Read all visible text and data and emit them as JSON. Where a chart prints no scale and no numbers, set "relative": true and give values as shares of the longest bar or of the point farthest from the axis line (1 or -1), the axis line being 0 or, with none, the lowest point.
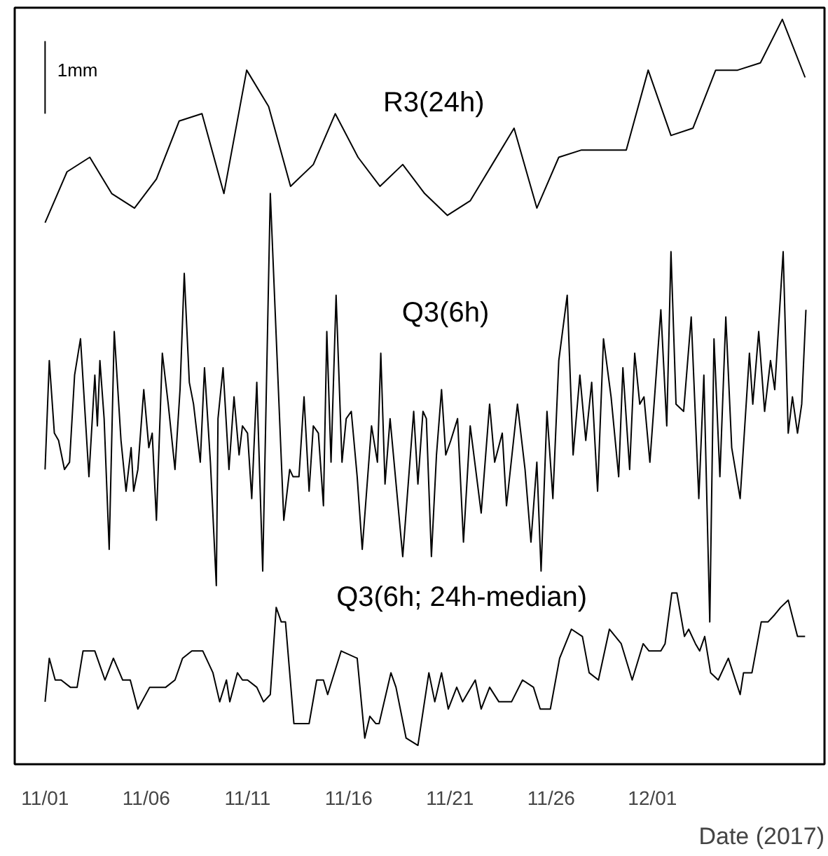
{
  "chart_data": {
    "type": "line",
    "relative": true,
    "xlabel": "Date (2017)",
    "xlim": [
      "2017-10-30T12:00",
      "2017-12-09T12:00"
    ],
    "xticks": [
      {
        "value": "2017-11-01",
        "label": "11/01"
      },
      {
        "value": "2017-11-06",
        "label": "11/06"
      },
      {
        "value": "2017-11-11",
        "label": "11/11"
      },
      {
        "value": "2017-11-16",
        "label": "11/16"
      },
      {
        "value": "2017-11-21",
        "label": "11/21"
      },
      {
        "value": "2017-11-26",
        "label": "11/26"
      },
      {
        "value": "2017-12-01",
        "label": "12/01"
      }
    ],
    "grid": false,
    "legend": false,
    "tick_labels": "x",
    "series": [
      {
        "name": "1mm",
        "color": "#000000",
        "x": [
          "2017-11-01T00:00",
          "2017-11-01T00:00"
        ],
        "values": [
          0.97,
          0.87
        ]
      },
      {
        "name": "R3(24h)",
        "color": "#000000",
        "x": [
          "2017-11-01T00:00",
          "2017-11-02T02:00",
          "2017-11-03T05:00",
          "2017-11-04T07:00",
          "2017-11-05T10:00",
          "2017-11-06T12:00",
          "2017-11-07T15:00",
          "2017-11-08T18:00",
          "2017-11-09T20:00",
          "2017-11-10T23:00",
          "2017-11-12T01:00",
          "2017-11-13T03:00",
          "2017-11-14T06:00",
          "2017-11-15T08:00",
          "2017-11-16T11:00",
          "2017-11-17T13:00",
          "2017-11-18T16:00",
          "2017-11-19T18:00",
          "2017-11-20T21:00",
          "2017-11-22T00:00",
          "2017-11-23T02:00",
          "2017-11-24T04:00",
          "2017-11-25T07:00",
          "2017-11-26T09:00",
          "2017-11-27T12:00",
          "2017-11-28T14:00",
          "2017-11-29T17:00",
          "2017-11-30T19:00",
          "2017-12-01T22:00",
          "2017-12-03T00:00",
          "2017-12-04T03:00",
          "2017-12-05T05:00",
          "2017-12-06T08:00",
          "2017-12-07T10:00",
          "2017-12-08T13:00"
        ],
        "values": [
          0.72,
          0.79,
          0.81,
          0.76,
          0.74,
          0.78,
          0.86,
          0.87,
          0.76,
          0.93,
          0.88,
          0.77,
          0.8,
          0.87,
          0.81,
          0.77,
          0.8,
          0.76,
          0.73,
          0.75,
          0.8,
          0.85,
          0.74,
          0.81,
          0.82,
          0.82,
          0.82,
          0.93,
          0.84,
          0.85,
          0.93,
          0.93,
          0.94,
          1.0,
          0.92
        ]
      },
      {
        "name": "Q3(6h)",
        "color": "#000000",
        "x": [
          "2017-11-01T00:00",
          "2017-11-01T05:00",
          "2017-11-01T11:00",
          "2017-11-01T16:00",
          "2017-11-01T23:00",
          "2017-11-02T05:00",
          "2017-11-02T11:00",
          "2017-11-02T18:00",
          "2017-11-03T04:00",
          "2017-11-03T11:00",
          "2017-11-03T14:00",
          "2017-11-03T17:00",
          "2017-11-03T22:00",
          "2017-11-04T04:00",
          "2017-11-04T10:00",
          "2017-11-04T18:00",
          "2017-11-05T00:00",
          "2017-11-05T06:00",
          "2017-11-05T09:00",
          "2017-11-05T14:00",
          "2017-11-05T21:00",
          "2017-11-06T03:00",
          "2017-11-06T07:00",
          "2017-11-06T12:00",
          "2017-11-06T19:00",
          "2017-11-07T02:00",
          "2017-11-07T10:00",
          "2017-11-07T16:00",
          "2017-11-07T21:00",
          "2017-11-08T03:00",
          "2017-11-08T08:00",
          "2017-11-08T16:00",
          "2017-11-08T21:00",
          "2017-11-09T04:00",
          "2017-11-09T11:00",
          "2017-11-09T13:00",
          "2017-11-09T19:00",
          "2017-11-10T02:00",
          "2017-11-10T08:00",
          "2017-11-10T14:00",
          "2017-11-10T18:00",
          "2017-11-11T00:00",
          "2017-11-11T05:00",
          "2017-11-11T11:00",
          "2017-11-11T18:00",
          "2017-11-12T03:00",
          "2017-11-12T19:00",
          "2017-11-13T02:00",
          "2017-11-13T06:00",
          "2017-11-13T13:00",
          "2017-11-13T19:00",
          "2017-11-14T01:00",
          "2017-11-14T06:00",
          "2017-11-14T12:00",
          "2017-11-14T18:00",
          "2017-11-14T22:00",
          "2017-11-15T03:00",
          "2017-11-15T09:00",
          "2017-11-15T16:00",
          "2017-11-15T21:00",
          "2017-11-16T03:00",
          "2017-11-16T10:00",
          "2017-11-16T16:00",
          "2017-11-17T03:00",
          "2017-11-17T10:00",
          "2017-11-17T14:00",
          "2017-11-17T19:00",
          "2017-11-18T01:00",
          "2017-11-18T16:00",
          "2017-11-19T05:00",
          "2017-11-19T10:00",
          "2017-11-19T16:00",
          "2017-11-19T20:00",
          "2017-11-20T02:00",
          "2017-11-20T08:00",
          "2017-11-20T14:00",
          "2017-11-20T19:00",
          "2017-11-21T01:00",
          "2017-11-21T09:00",
          "2017-11-21T16:00",
          "2017-11-22T00:00",
          "2017-11-22T13:00",
          "2017-11-22T23:00",
          "2017-11-23T05:00",
          "2017-11-23T14:00",
          "2017-11-23T19:00",
          "2017-11-24T08:00",
          "2017-11-24T17:00",
          "2017-11-25T00:00",
          "2017-11-25T07:00",
          "2017-11-25T12:00",
          "2017-11-25T19:00",
          "2017-11-26T02:00",
          "2017-11-26T09:00",
          "2017-11-26T19:00",
          "2017-11-27T02:00",
          "2017-11-27T10:00",
          "2017-11-27T17:00",
          "2017-11-28T00:00",
          "2017-11-28T07:00",
          "2017-11-28T14:00",
          "2017-11-28T23:00",
          "2017-11-29T08:00",
          "2017-11-29T13:00",
          "2017-11-29T21:00",
          "2017-11-30T03:00",
          "2017-11-30T09:00",
          "2017-11-30T14:00",
          "2017-11-30T21:00",
          "2017-12-01T10:00",
          "2017-12-01T17:00",
          "2017-12-01T22:00",
          "2017-12-02T04:00",
          "2017-12-02T13:00",
          "2017-12-02T22:00",
          "2017-12-03T07:00",
          "2017-12-03T13:00",
          "2017-12-03T20:00",
          "2017-12-04T01:00",
          "2017-12-04T08:00",
          "2017-12-04T15:00",
          "2017-12-04T22:00",
          "2017-12-05T08:00",
          "2017-12-05T19:00",
          "2017-12-05T23:00",
          "2017-12-06T06:00",
          "2017-12-06T13:00",
          "2017-12-06T20:00",
          "2017-12-07T01:00",
          "2017-12-07T11:00",
          "2017-12-07T17:00",
          "2017-12-07T22:00",
          "2017-12-08T04:00",
          "2017-12-08T09:00",
          "2017-12-08T14:00"
        ],
        "values": [
          0.38,
          0.53,
          0.43,
          0.42,
          0.38,
          0.39,
          0.51,
          0.56,
          0.37,
          0.51,
          0.44,
          0.53,
          0.45,
          0.27,
          0.57,
          0.42,
          0.35,
          0.41,
          0.35,
          0.38,
          0.49,
          0.41,
          0.43,
          0.31,
          0.54,
          0.47,
          0.38,
          0.49,
          0.65,
          0.5,
          0.47,
          0.39,
          0.52,
          0.39,
          0.22,
          0.45,
          0.52,
          0.38,
          0.48,
          0.4,
          0.44,
          0.43,
          0.34,
          0.5,
          0.24,
          0.76,
          0.31,
          0.38,
          0.37,
          0.37,
          0.48,
          0.35,
          0.44,
          0.43,
          0.33,
          0.57,
          0.39,
          0.62,
          0.39,
          0.45,
          0.46,
          0.37,
          0.27,
          0.44,
          0.39,
          0.54,
          0.36,
          0.45,
          0.26,
          0.46,
          0.36,
          0.46,
          0.45,
          0.26,
          0.4,
          0.49,
          0.4,
          0.42,
          0.45,
          0.28,
          0.44,
          0.32,
          0.47,
          0.39,
          0.43,
          0.33,
          0.47,
          0.38,
          0.28,
          0.39,
          0.24,
          0.46,
          0.34,
          0.53,
          0.62,
          0.4,
          0.51,
          0.42,
          0.5,
          0.35,
          0.56,
          0.48,
          0.37,
          0.52,
          0.38,
          0.54,
          0.47,
          0.48,
          0.39,
          0.6,
          0.44,
          0.68,
          0.47,
          0.46,
          0.59,
          0.34,
          0.51,
          0.17,
          0.56,
          0.37,
          0.59,
          0.41,
          0.34,
          0.54,
          0.47,
          0.57,
          0.46,
          0.53,
          0.49,
          0.68,
          0.43,
          0.48,
          0.43,
          0.47,
          0.6
        ]
      },
      {
        "name": "Q3(6h; 24h-median)",
        "color": "#000000",
        "x": [
          "2017-11-01T00:00",
          "2017-11-01T05:00",
          "2017-11-01T12:00",
          "2017-11-01T19:00",
          "2017-11-02T06:00",
          "2017-11-02T14:00",
          "2017-11-02T21:00",
          "2017-11-03T11:00",
          "2017-11-03T23:00",
          "2017-11-04T09:00",
          "2017-11-04T20:00",
          "2017-11-05T05:00",
          "2017-11-05T14:00",
          "2017-11-06T04:00",
          "2017-11-06T23:00",
          "2017-11-07T10:00",
          "2017-11-07T19:00",
          "2017-11-08T06:00",
          "2017-11-08T19:00",
          "2017-11-09T07:00",
          "2017-11-09T15:00",
          "2017-11-09T23:00",
          "2017-11-10T03:00",
          "2017-11-10T12:00",
          "2017-11-10T18:00",
          "2017-11-11T00:00",
          "2017-11-11T11:00",
          "2017-11-11T19:00",
          "2017-11-12T03:00",
          "2017-11-12T10:00",
          "2017-11-12T16:00",
          "2017-11-12T21:00",
          "2017-11-13T07:00",
          "2017-11-13T16:00",
          "2017-11-14T01:00",
          "2017-11-14T10:00",
          "2017-11-14T18:00",
          "2017-11-14T23:00",
          "2017-11-15T15:00",
          "2017-11-16T10:00",
          "2017-11-16T19:00",
          "2017-11-17T01:00",
          "2017-11-17T08:00",
          "2017-11-17T12:00",
          "2017-11-18T02:00",
          "2017-11-18T08:00",
          "2017-11-18T20:00",
          "2017-11-19T10:00",
          "2017-11-19T23:00",
          "2017-11-20T06:00",
          "2017-11-20T14:00",
          "2017-11-20T22:00",
          "2017-11-21T08:00",
          "2017-11-21T15:00",
          "2017-11-22T06:00",
          "2017-11-22T13:00",
          "2017-11-22T23:00",
          "2017-11-23T10:00",
          "2017-11-24T01:00",
          "2017-11-24T14:00",
          "2017-11-25T03:00",
          "2017-11-25T11:00",
          "2017-11-25T23:00",
          "2017-11-26T10:00",
          "2017-11-27T00:00",
          "2017-11-27T13:00",
          "2017-11-27T21:00",
          "2017-11-28T08:00",
          "2017-11-28T21:00",
          "2017-11-29T11:00",
          "2017-11-30T00:00",
          "2017-11-30T13:00",
          "2017-11-30T20:00",
          "2017-12-01T10:00",
          "2017-12-01T15:00",
          "2017-12-01T23:00",
          "2017-12-02T05:00",
          "2017-12-02T14:00",
          "2017-12-02T19:00",
          "2017-12-03T03:00",
          "2017-12-03T08:00",
          "2017-12-03T14:00",
          "2017-12-03T21:00",
          "2017-12-04T06:00",
          "2017-12-04T18:00",
          "2017-12-05T08:00",
          "2017-12-05T12:00",
          "2017-12-05T22:00",
          "2017-12-06T09:00",
          "2017-12-06T17:00",
          "2017-12-07T01:00",
          "2017-12-07T08:00",
          "2017-12-07T17:00",
          "2017-12-08T04:00",
          "2017-12-08T13:00"
        ],
        "values": [
          0.06,
          0.12,
          0.09,
          0.09,
          0.08,
          0.08,
          0.13,
          0.13,
          0.09,
          0.12,
          0.09,
          0.09,
          0.05,
          0.08,
          0.08,
          0.09,
          0.12,
          0.13,
          0.13,
          0.1,
          0.06,
          0.09,
          0.06,
          0.1,
          0.09,
          0.09,
          0.08,
          0.06,
          0.07,
          0.19,
          0.17,
          0.17,
          0.03,
          0.03,
          0.03,
          0.09,
          0.09,
          0.07,
          0.13,
          0.12,
          0.01,
          0.04,
          0.03,
          0.03,
          0.1,
          0.08,
          0.01,
          0,
          0.1,
          0.06,
          0.1,
          0.05,
          0.08,
          0.06,
          0.09,
          0.05,
          0.08,
          0.06,
          0.06,
          0.09,
          0.08,
          0.05,
          0.05,
          0.12,
          0.16,
          0.15,
          0.1,
          0.09,
          0.16,
          0.14,
          0.09,
          0.14,
          0.13,
          0.13,
          0.14,
          0.21,
          0.21,
          0.15,
          0.16,
          0.14,
          0.13,
          0.15,
          0.1,
          0.09,
          0.12,
          0.07,
          0.1,
          0.1,
          0.17,
          0.17,
          0.18,
          0.19,
          0.2,
          0.15,
          0.15
        ]
      }
    ]
  }
}
